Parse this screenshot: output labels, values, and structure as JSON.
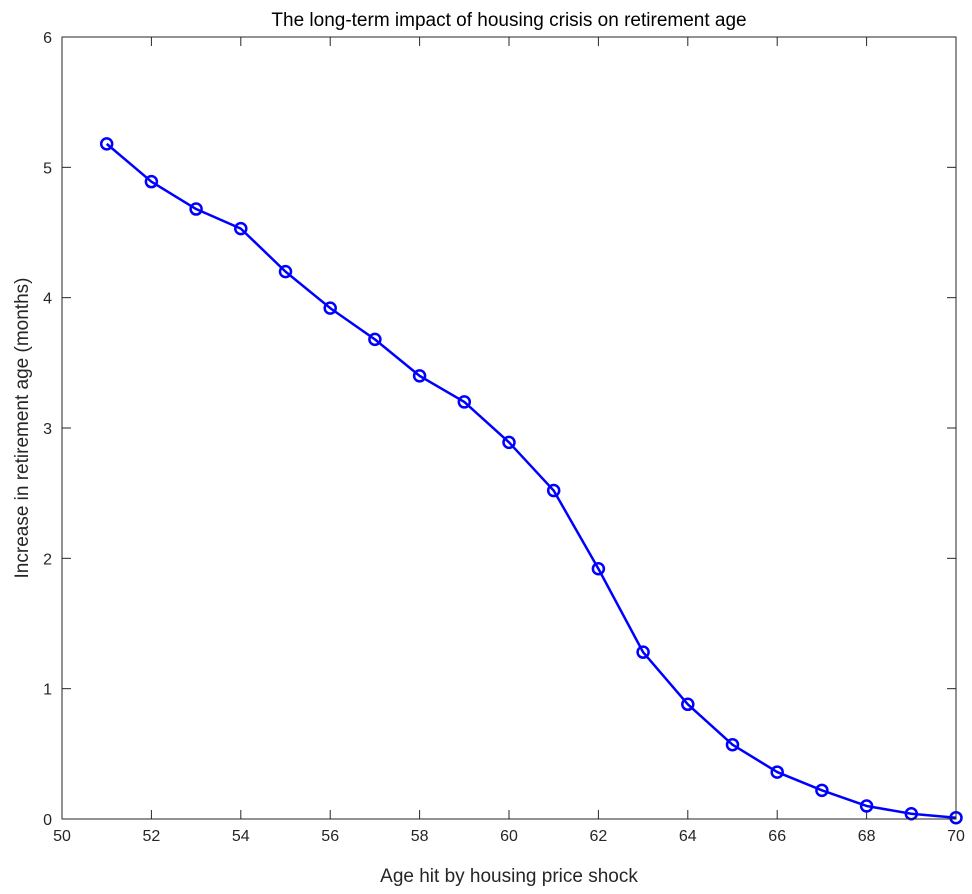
{
  "chart_data": {
    "type": "line",
    "title": "The long-term impact of housing crisis on retirement age",
    "xlabel": "Age hit by housing price shock",
    "ylabel": "Increase in retirement age (months)",
    "xlim": [
      50,
      70
    ],
    "ylim": [
      0,
      6
    ],
    "xticks": [
      50,
      52,
      54,
      56,
      58,
      60,
      62,
      64,
      66,
      68,
      70
    ],
    "yticks": [
      0,
      1,
      2,
      3,
      4,
      5,
      6
    ],
    "grid": false,
    "series": [
      {
        "color": "#0000ff",
        "marker": "circle",
        "x": [
          51,
          52,
          53,
          54,
          55,
          56,
          57,
          58,
          59,
          60,
          61,
          62,
          63,
          64,
          65,
          66,
          67,
          68,
          69,
          70
        ],
        "y": [
          5.18,
          4.89,
          4.68,
          4.53,
          4.2,
          3.92,
          3.68,
          3.4,
          3.2,
          2.89,
          2.52,
          1.92,
          1.28,
          0.88,
          0.57,
          0.36,
          0.22,
          0.1,
          0.04,
          0.01
        ]
      }
    ]
  }
}
